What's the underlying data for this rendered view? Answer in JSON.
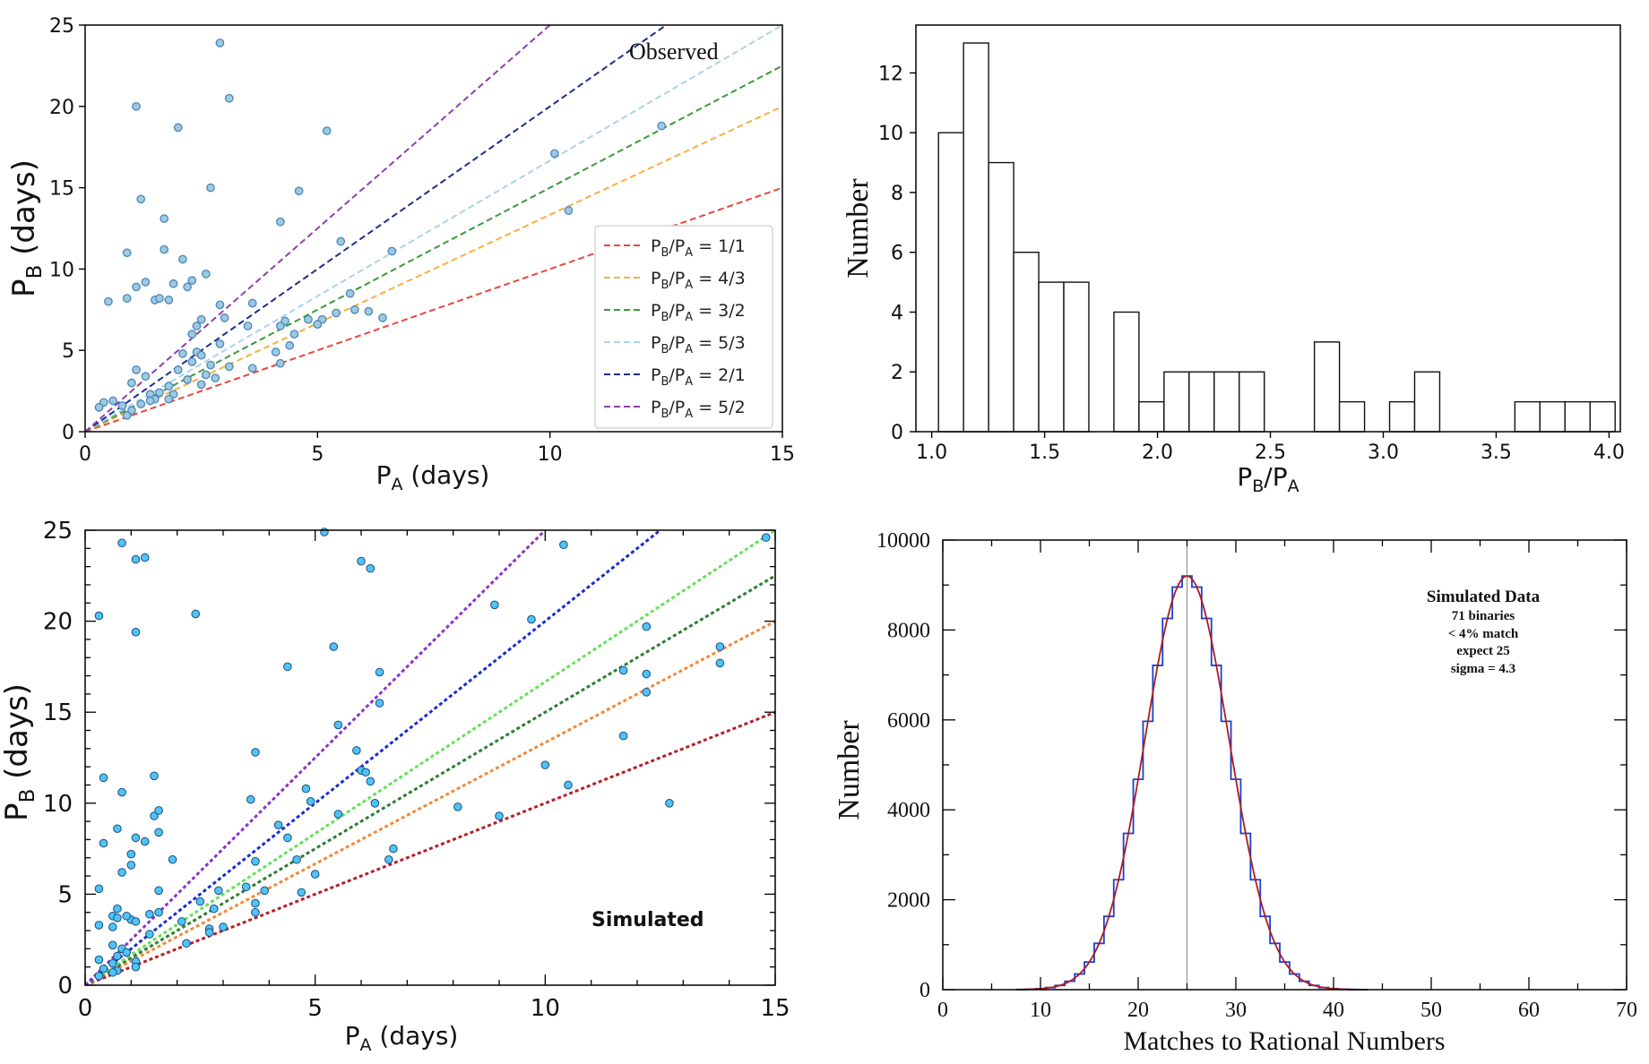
{
  "chart_data": [
    {
      "id": "observed",
      "type": "scatter",
      "title": "",
      "annotation": "Observed",
      "xlabel": {
        "main": "P",
        "sub": "A",
        "rest": " (days)"
      },
      "ylabel": {
        "main": "P",
        "sub": "B",
        "rest": " (days)"
      },
      "xlim": [
        0,
        15
      ],
      "ylim": [
        0,
        25
      ],
      "xticks": [
        0,
        5,
        10,
        15
      ],
      "yticks": [
        0,
        5,
        10,
        15,
        20,
        25
      ],
      "point_color": "#9ecae1",
      "point_edge": "#4a86b8",
      "lines": [
        {
          "num": 1,
          "den": 1,
          "label": "1/1",
          "color": "#e8463c"
        },
        {
          "num": 4,
          "den": 3,
          "label": "4/3",
          "color": "#f5b041"
        },
        {
          "num": 3,
          "den": 2,
          "label": "3/2",
          "color": "#3a9a3a"
        },
        {
          "num": 5,
          "den": 3,
          "label": "5/3",
          "color": "#a9d3ea"
        },
        {
          "num": 2,
          "den": 1,
          "label": "2/1",
          "color": "#1c2f8c"
        },
        {
          "num": 5,
          "den": 2,
          "label": "5/2",
          "color": "#8e3fae"
        }
      ],
      "legend": {
        "prefix_main": "P",
        "prefix_sub1": "B",
        "slash": "/P",
        "prefix_sub2": "A",
        "equals": " = "
      },
      "points": [
        [
          2.9,
          23.9
        ],
        [
          3.1,
          20.5
        ],
        [
          1.1,
          20.0
        ],
        [
          2.0,
          18.7
        ],
        [
          5.2,
          18.5
        ],
        [
          12.4,
          18.8
        ],
        [
          10.1,
          17.1
        ],
        [
          2.7,
          15.0
        ],
        [
          4.6,
          14.8
        ],
        [
          1.2,
          14.3
        ],
        [
          10.4,
          13.6
        ],
        [
          1.7,
          13.1
        ],
        [
          4.2,
          12.9
        ],
        [
          5.5,
          11.7
        ],
        [
          1.7,
          11.2
        ],
        [
          0.9,
          11.0
        ],
        [
          6.6,
          11.1
        ],
        [
          2.1,
          10.6
        ],
        [
          2.6,
          9.7
        ],
        [
          2.3,
          9.3
        ],
        [
          1.3,
          9.2
        ],
        [
          1.1,
          8.9
        ],
        [
          1.5,
          8.1
        ],
        [
          0.9,
          8.2
        ],
        [
          1.9,
          9.1
        ],
        [
          2.2,
          8.9
        ],
        [
          0.5,
          8.0
        ],
        [
          1.6,
          8.2
        ],
        [
          1.8,
          8.1
        ],
        [
          2.9,
          7.8
        ],
        [
          3.6,
          7.9
        ],
        [
          5.7,
          8.5
        ],
        [
          3.0,
          7.0
        ],
        [
          2.5,
          6.9
        ],
        [
          2.4,
          6.5
        ],
        [
          4.3,
          6.8
        ],
        [
          4.8,
          6.9
        ],
        [
          3.5,
          6.5
        ],
        [
          5.1,
          6.9
        ],
        [
          2.3,
          6.0
        ],
        [
          4.5,
          6.0
        ],
        [
          4.2,
          6.5
        ],
        [
          5.0,
          6.6
        ],
        [
          5.8,
          7.5
        ],
        [
          5.4,
          7.3
        ],
        [
          6.1,
          7.4
        ],
        [
          6.4,
          7.0
        ],
        [
          2.1,
          4.8
        ],
        [
          2.4,
          4.9
        ],
        [
          2.5,
          4.7
        ],
        [
          2.3,
          4.3
        ],
        [
          2.7,
          4.1
        ],
        [
          2.9,
          5.4
        ],
        [
          4.1,
          4.9
        ],
        [
          4.4,
          5.3
        ],
        [
          3.1,
          4.0
        ],
        [
          3.6,
          3.9
        ],
        [
          2.0,
          3.8
        ],
        [
          2.6,
          3.5
        ],
        [
          4.2,
          4.2
        ],
        [
          1.1,
          3.8
        ],
        [
          1.3,
          3.4
        ],
        [
          2.2,
          3.2
        ],
        [
          1.0,
          3.0
        ],
        [
          1.6,
          2.4
        ],
        [
          1.9,
          2.3
        ],
        [
          2.8,
          3.3
        ],
        [
          1.8,
          2.0
        ],
        [
          2.5,
          2.9
        ],
        [
          1.4,
          2.3
        ],
        [
          0.8,
          1.6
        ],
        [
          1.2,
          1.7
        ],
        [
          0.4,
          1.8
        ],
        [
          0.6,
          1.9
        ],
        [
          0.3,
          1.5
        ],
        [
          1.0,
          1.3
        ],
        [
          1.5,
          2.0
        ],
        [
          1.8,
          2.8
        ],
        [
          0.9,
          1.0
        ],
        [
          1.4,
          1.9
        ]
      ]
    },
    {
      "id": "ratio-histogram",
      "type": "bar",
      "title": "",
      "xlabel": {
        "main": "P",
        "sub": "B",
        "mid": "/P",
        "sub2": "A"
      },
      "ylabel": "Number",
      "xlim": [
        0.93,
        4.05
      ],
      "ylim": [
        0,
        13.6
      ],
      "xticks": [
        "1.0",
        "1.5",
        "2.0",
        "2.5",
        "3.0",
        "3.5",
        "4.0"
      ],
      "yticks": [
        0,
        2,
        4,
        6,
        8,
        10,
        12
      ],
      "bin_start": 1.03,
      "bin_width": 0.111,
      "values": [
        10,
        13,
        9,
        6,
        5,
        5,
        0,
        4,
        1,
        2,
        2,
        2,
        2,
        0,
        0,
        3,
        1,
        0,
        1,
        2,
        0,
        0,
        0,
        1,
        1,
        1,
        1
      ]
    },
    {
      "id": "simulated",
      "type": "scatter",
      "title": "",
      "annotation": "Simulated",
      "xlabel": {
        "main": "P",
        "sub": "A",
        "rest": " (days)"
      },
      "ylabel": {
        "main": "P",
        "sub": "B",
        "rest": " (days)"
      },
      "xlim": [
        0,
        15
      ],
      "ylim": [
        0,
        25
      ],
      "xticks": [
        0,
        5,
        10,
        15
      ],
      "yticks": [
        0,
        5,
        10,
        15,
        20,
        25
      ],
      "point_color": "#4fc3f7",
      "point_edge": "#1a4d7a",
      "lines": [
        {
          "num": 1,
          "den": 1,
          "color": "#b3202a"
        },
        {
          "num": 4,
          "den": 3,
          "color": "#f08a3c"
        },
        {
          "num": 3,
          "den": 2,
          "color": "#2f7d32"
        },
        {
          "num": 5,
          "den": 3,
          "color": "#66e05a"
        },
        {
          "num": 2,
          "den": 1,
          "color": "#1a2ecc"
        },
        {
          "num": 5,
          "den": 2,
          "color": "#8a35c9"
        }
      ],
      "points": [
        [
          0.8,
          24.3
        ],
        [
          1.1,
          23.4
        ],
        [
          1.3,
          23.5
        ],
        [
          5.2,
          24.9
        ],
        [
          6.0,
          23.3
        ],
        [
          6.2,
          22.9
        ],
        [
          10.4,
          24.2
        ],
        [
          14.8,
          24.6
        ],
        [
          0.3,
          20.3
        ],
        [
          2.4,
          20.4
        ],
        [
          1.1,
          19.4
        ],
        [
          8.9,
          20.9
        ],
        [
          9.7,
          20.1
        ],
        [
          12.2,
          19.7
        ],
        [
          5.4,
          18.6
        ],
        [
          13.8,
          18.6
        ],
        [
          13.8,
          17.7
        ],
        [
          4.4,
          17.5
        ],
        [
          11.7,
          17.3
        ],
        [
          6.4,
          17.2
        ],
        [
          12.2,
          17.1
        ],
        [
          12.2,
          16.1
        ],
        [
          6.4,
          15.5
        ],
        [
          5.5,
          14.3
        ],
        [
          11.7,
          13.7
        ],
        [
          3.7,
          12.8
        ],
        [
          5.9,
          12.9
        ],
        [
          6.0,
          11.8
        ],
        [
          6.1,
          11.7
        ],
        [
          0.4,
          11.4
        ],
        [
          1.5,
          11.5
        ],
        [
          6.2,
          11.2
        ],
        [
          10.0,
          12.1
        ],
        [
          0.8,
          10.6
        ],
        [
          3.6,
          10.2
        ],
        [
          4.8,
          10.8
        ],
        [
          4.9,
          10.1
        ],
        [
          6.3,
          10.0
        ],
        [
          10.5,
          11.0
        ],
        [
          12.7,
          10.0
        ],
        [
          1.5,
          9.3
        ],
        [
          1.6,
          9.6
        ],
        [
          5.5,
          9.4
        ],
        [
          8.1,
          9.8
        ],
        [
          9.0,
          9.3
        ],
        [
          0.7,
          8.6
        ],
        [
          1.1,
          8.1
        ],
        [
          4.2,
          8.8
        ],
        [
          4.4,
          8.1
        ],
        [
          1.6,
          8.4
        ],
        [
          0.4,
          7.8
        ],
        [
          1.3,
          7.9
        ],
        [
          6.7,
          7.5
        ],
        [
          1.0,
          7.2
        ],
        [
          1.9,
          6.9
        ],
        [
          3.7,
          6.8
        ],
        [
          4.6,
          6.9
        ],
        [
          6.6,
          6.9
        ],
        [
          1.0,
          6.6
        ],
        [
          0.8,
          6.2
        ],
        [
          5.0,
          6.1
        ],
        [
          3.5,
          5.4
        ],
        [
          3.9,
          5.2
        ],
        [
          0.3,
          5.3
        ],
        [
          1.6,
          5.2
        ],
        [
          2.9,
          5.2
        ],
        [
          4.7,
          5.1
        ],
        [
          2.5,
          4.6
        ],
        [
          2.8,
          4.2
        ],
        [
          3.7,
          4.5
        ],
        [
          0.7,
          4.2
        ],
        [
          0.6,
          3.8
        ],
        [
          0.7,
          3.7
        ],
        [
          1.0,
          3.6
        ],
        [
          0.9,
          3.8
        ],
        [
          1.4,
          3.9
        ],
        [
          1.6,
          4.0
        ],
        [
          2.1,
          3.5
        ],
        [
          3.7,
          4.0
        ],
        [
          0.3,
          3.3
        ],
        [
          0.6,
          3.2
        ],
        [
          1.1,
          3.5
        ],
        [
          2.7,
          3.1
        ],
        [
          3.0,
          3.2
        ],
        [
          2.7,
          2.9
        ],
        [
          1.4,
          2.8
        ],
        [
          2.2,
          2.3
        ],
        [
          0.6,
          2.2
        ],
        [
          0.8,
          2.0
        ],
        [
          0.3,
          1.4
        ],
        [
          0.6,
          1.2
        ],
        [
          1.1,
          1.3
        ],
        [
          0.7,
          1.6
        ],
        [
          0.9,
          1.8
        ],
        [
          0.4,
          0.9
        ],
        [
          0.7,
          0.8
        ],
        [
          1.1,
          1.0
        ],
        [
          0.6,
          0.7
        ],
        [
          0.3,
          0.5
        ]
      ]
    },
    {
      "id": "matches-histogram",
      "type": "bar",
      "title": "",
      "xlabel": "Matches to Rational Numbers",
      "ylabel": "Number",
      "xlim": [
        0,
        70
      ],
      "ylim": [
        0,
        10000
      ],
      "xticks": [
        0,
        10,
        20,
        30,
        40,
        50,
        60,
        70
      ],
      "yticks": [
        0,
        2000,
        4000,
        6000,
        8000,
        10000
      ],
      "expected": 25,
      "sigma": 4.3,
      "peak": 9200,
      "bar_color": "#1a3fd6",
      "fit_color": "#b01c1c",
      "annotation": {
        "title": "Simulated Data",
        "lines": [
          "71 binaries",
          "< 4% match",
          "expect 25",
          "sigma = 4.3"
        ]
      }
    }
  ]
}
